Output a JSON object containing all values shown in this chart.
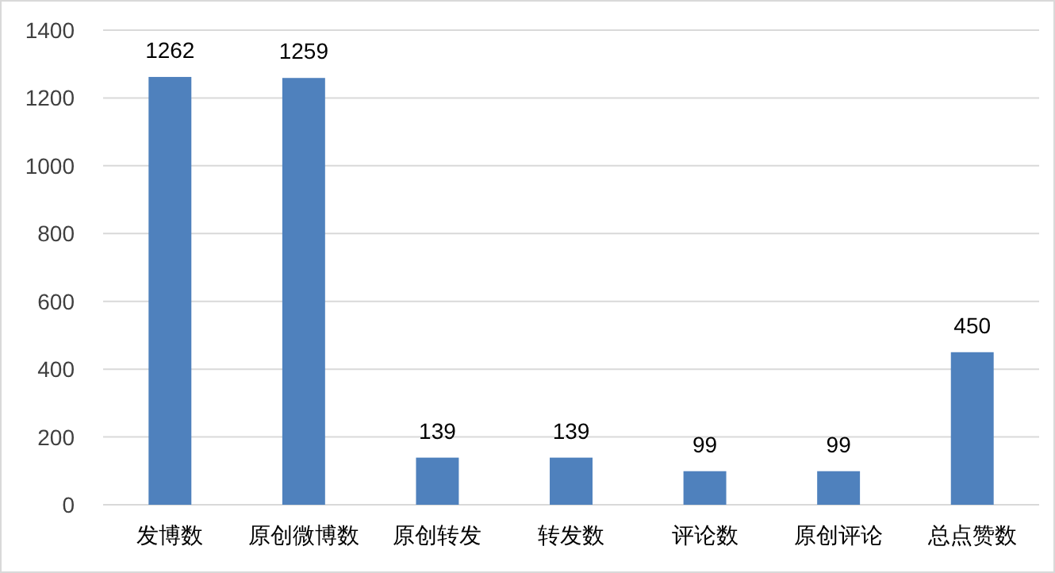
{
  "chart_data": {
    "type": "bar",
    "categories": [
      "发博数",
      "原创微博数",
      "原创转发",
      "转发数",
      "评论数",
      "原创评论",
      "总点赞数"
    ],
    "values": [
      1262,
      1259,
      139,
      139,
      99,
      99,
      450
    ],
    "color": "#4f81bd",
    "ylim": [
      0,
      1400
    ],
    "yticks": [
      0,
      200,
      400,
      600,
      800,
      1000,
      1200,
      1400
    ],
    "grid": "y",
    "data_labels": true
  }
}
